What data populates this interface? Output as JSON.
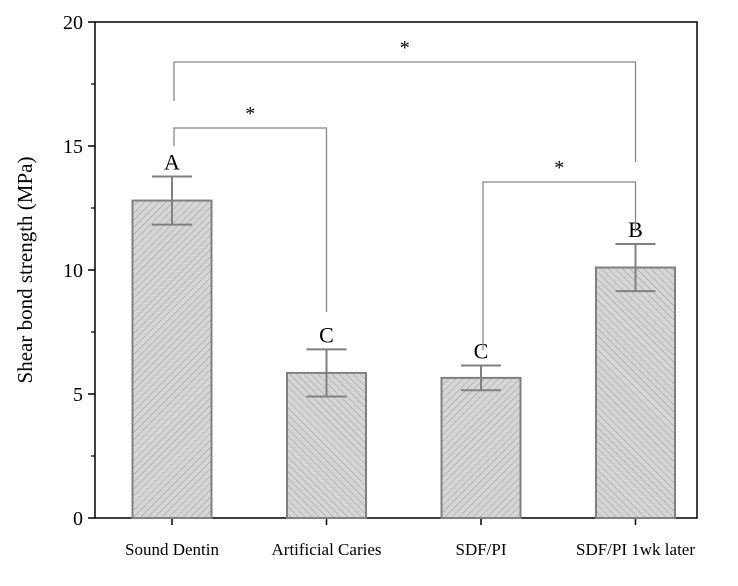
{
  "chart_data": {
    "type": "bar",
    "title": "",
    "xlabel": "",
    "ylabel": "Shear bond strength (MPa)",
    "ylim": [
      0,
      20
    ],
    "yticks": [
      0,
      5,
      10,
      15,
      20
    ],
    "categories": [
      "Sound Dentin",
      "Artificial Caries",
      "SDF/PI",
      "SDF/PI 1wk later"
    ],
    "values": [
      12.8,
      5.85,
      5.65,
      10.1
    ],
    "errors": [
      0.97,
      0.95,
      0.5,
      0.95
    ],
    "group_letters": [
      "A",
      "C",
      "C",
      "B"
    ],
    "significance_brackets": [
      {
        "from": 0,
        "to": 3,
        "label": "*"
      },
      {
        "from": 0,
        "to": 1,
        "label": "*"
      },
      {
        "from": 2,
        "to": 3,
        "label": "*"
      }
    ],
    "bar_fill": "#d4d4d4",
    "bar_stroke": "#808080"
  }
}
